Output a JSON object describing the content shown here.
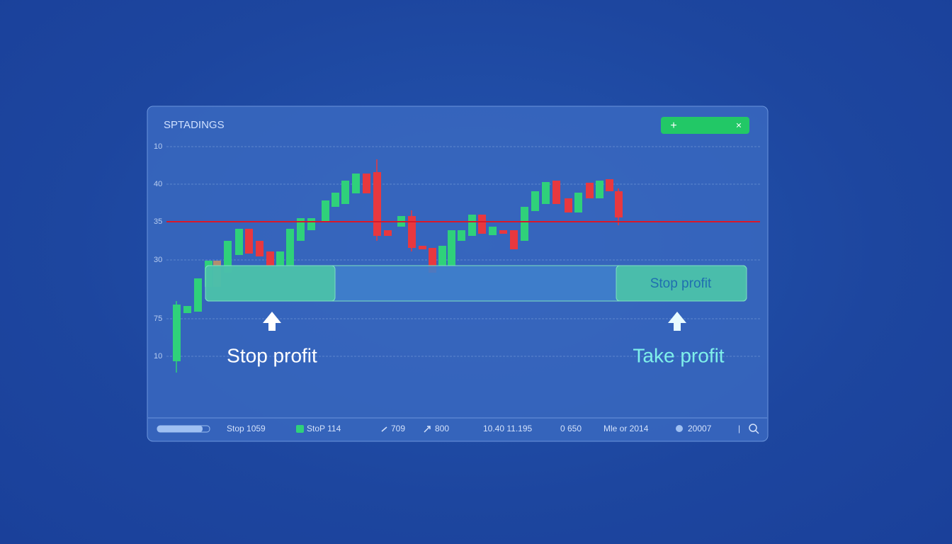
{
  "header": {
    "title": "SPTADINGS",
    "add_button": "+",
    "close_button": "×"
  },
  "axis": {
    "labels": [
      "10",
      "40",
      "35",
      "30",
      "75",
      "10"
    ]
  },
  "zone": {
    "label": "Stop profit"
  },
  "annotations": {
    "left": "Stop profit",
    "right": "Take profit"
  },
  "status_bar": {
    "items": [
      "Stop  1059",
      "StoP 114",
      "709",
      "800",
      "10.40 11.195",
      "0 650",
      "Mle or 2014",
      "20007",
      "|"
    ]
  }
}
